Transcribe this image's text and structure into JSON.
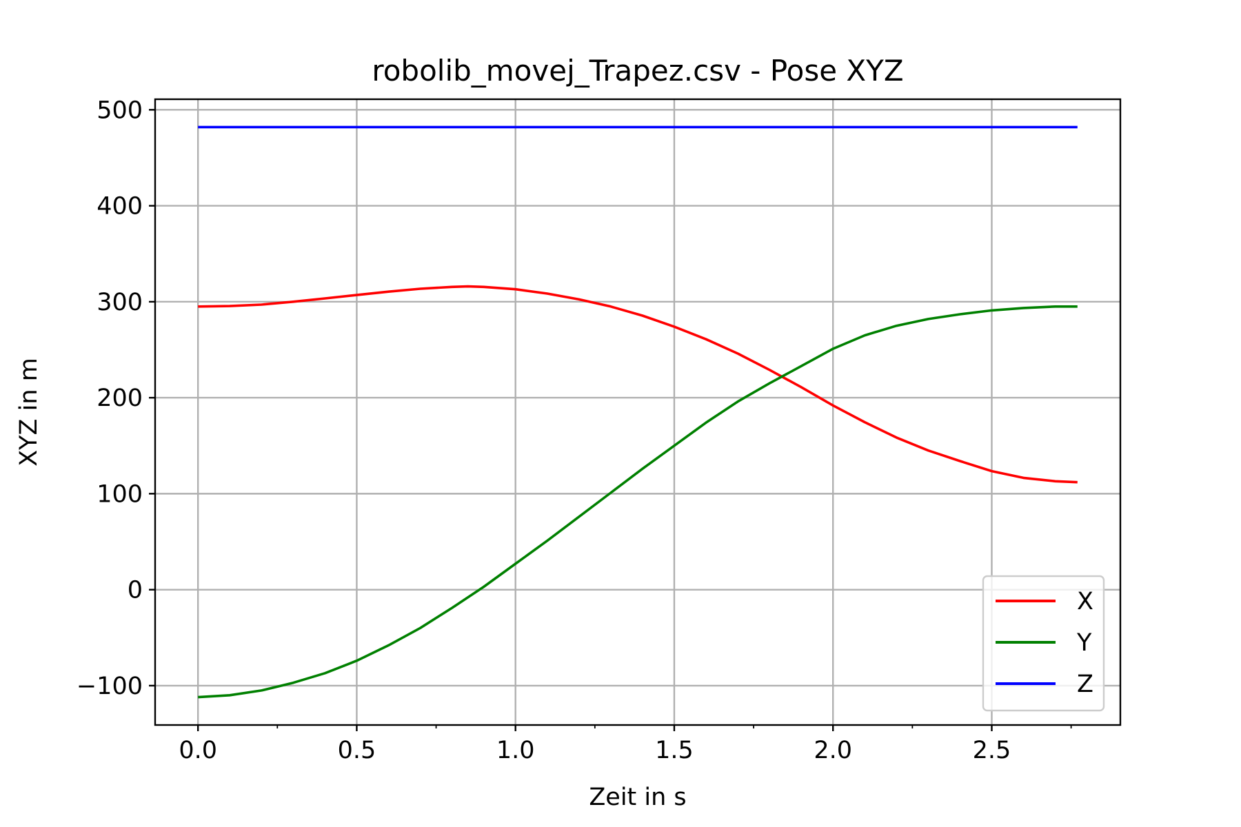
{
  "chart_data": {
    "type": "line",
    "title": "robolib_movej_Trapez.csv - Pose XYZ",
    "xlabel": "Zeit in s",
    "ylabel": "XYZ in m",
    "xlim": [
      -0.135,
      2.905
    ],
    "ylim": [
      -141,
      511
    ],
    "grid": true,
    "legend_position": "bottom-right",
    "x_ticks": [
      0.0,
      0.5,
      1.0,
      1.5,
      2.0,
      2.5
    ],
    "x_tick_labels": [
      "0.0",
      "0.5",
      "1.0",
      "1.5",
      "2.0",
      "2.5"
    ],
    "x_minor_ticks": [
      0.25,
      0.75,
      1.25,
      1.75,
      2.25,
      2.75
    ],
    "y_ticks": [
      -100,
      0,
      100,
      200,
      300,
      400,
      500
    ],
    "y_tick_labels": [
      "−100",
      "0",
      "100",
      "200",
      "300",
      "400",
      "500"
    ],
    "series": [
      {
        "name": "X",
        "color": "#ff0000",
        "x": [
          0.0,
          0.1,
          0.2,
          0.3,
          0.4,
          0.5,
          0.6,
          0.7,
          0.8,
          0.85,
          0.9,
          1.0,
          1.1,
          1.2,
          1.3,
          1.4,
          1.5,
          1.6,
          1.7,
          1.8,
          1.9,
          2.0,
          2.1,
          2.2,
          2.3,
          2.4,
          2.5,
          2.6,
          2.7,
          2.77
        ],
        "y": [
          295,
          295.5,
          297,
          300,
          303.5,
          307,
          310.5,
          313.5,
          315.5,
          316,
          315.5,
          313,
          308.5,
          302.5,
          295,
          285.5,
          274,
          261,
          246,
          229,
          211,
          192,
          174.5,
          158.5,
          145,
          134,
          123.5,
          116.5,
          113,
          112
        ]
      },
      {
        "name": "Y",
        "color": "#008000",
        "x": [
          0.0,
          0.1,
          0.2,
          0.3,
          0.4,
          0.5,
          0.6,
          0.7,
          0.8,
          0.9,
          1.0,
          1.1,
          1.2,
          1.3,
          1.4,
          1.5,
          1.6,
          1.7,
          1.8,
          1.9,
          2.0,
          2.1,
          2.2,
          2.3,
          2.4,
          2.5,
          2.6,
          2.7,
          2.77
        ],
        "y": [
          -112,
          -110,
          -105,
          -97,
          -87,
          -74,
          -58,
          -40,
          -19,
          3,
          27,
          51,
          76,
          101,
          126,
          150,
          174,
          196,
          215,
          233,
          251,
          265,
          275,
          282,
          287,
          291,
          293.5,
          295,
          295
        ]
      },
      {
        "name": "Z",
        "color": "#0000ff",
        "x": [
          0.0,
          2.77
        ],
        "y": [
          482,
          482
        ]
      }
    ]
  }
}
